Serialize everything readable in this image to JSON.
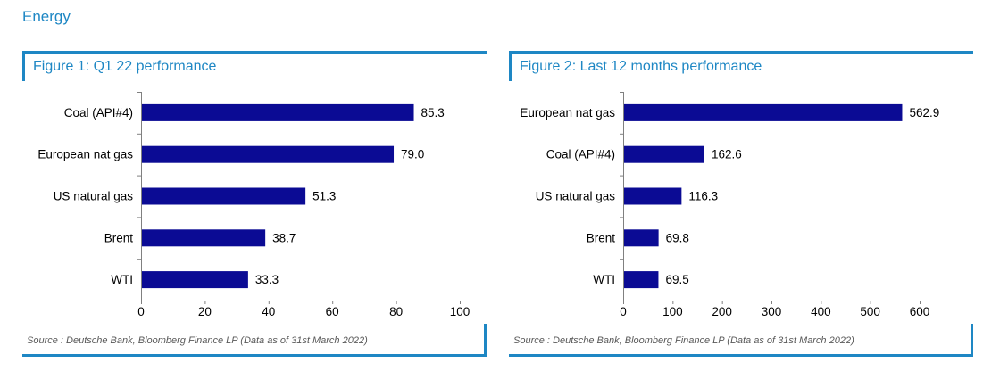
{
  "page": {
    "title": "Energy"
  },
  "colors": {
    "accent_blue": "#1e87c4",
    "bar_navy": "#0b0b94",
    "axis_gray": "#808080",
    "label_black": "#000000",
    "source_gray": "#595959"
  },
  "chart_data": [
    {
      "type": "bar",
      "orientation": "horizontal",
      "title": "Figure 1: Q1 22 performance",
      "categories": [
        "Coal (API#4)",
        "European nat gas",
        "US natural gas",
        "Brent",
        "WTI"
      ],
      "values": [
        85.3,
        79.0,
        51.3,
        38.7,
        33.3
      ],
      "value_label_decimals": 1,
      "xlim": [
        0,
        100
      ],
      "xticks": [
        0,
        20,
        40,
        60,
        80,
        100
      ],
      "grid": false,
      "legend": "none",
      "bar_color": "#0b0b94",
      "layout": {
        "axis_x": 133,
        "plot_right": 490
      },
      "source": "Source : Deutsche Bank, Bloomberg Finance LP (Data as of 31st March 2022)"
    },
    {
      "type": "bar",
      "orientation": "horizontal",
      "title": "Figure 2: Last 12 months performance",
      "categories": [
        "European nat gas",
        "Coal (API#4)",
        "US natural gas",
        "Brent",
        "WTI"
      ],
      "values": [
        562.9,
        162.6,
        116.3,
        69.8,
        69.5
      ],
      "value_label_decimals": 1,
      "xlim": [
        0,
        600
      ],
      "xticks": [
        0,
        100,
        200,
        300,
        400,
        500,
        600
      ],
      "grid": false,
      "legend": "none",
      "bar_color": "#0b0b94",
      "layout": {
        "axis_x": 128,
        "plot_right": 460
      },
      "source": "Source : Deutsche Bank, Bloomberg Finance LP (Data as of 31st March 2022)"
    }
  ]
}
